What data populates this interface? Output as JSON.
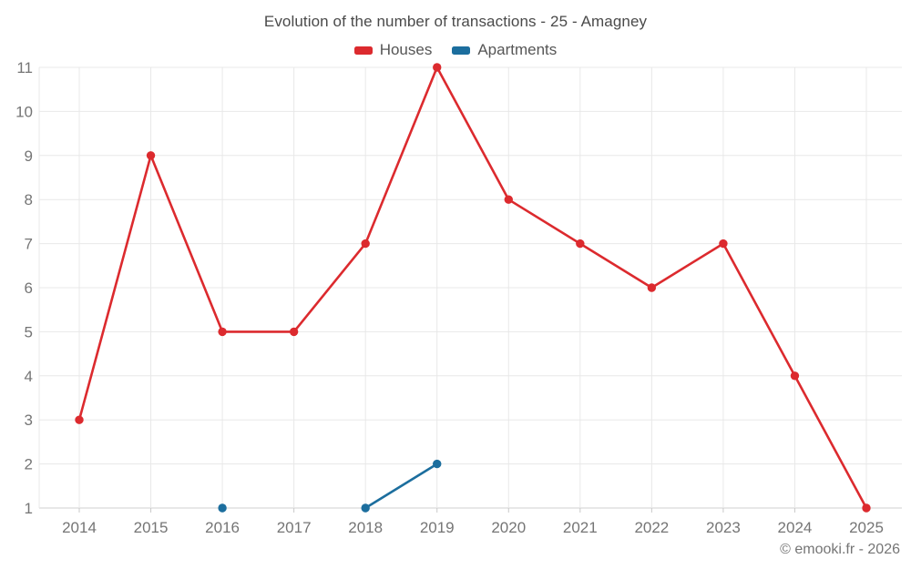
{
  "chart": {
    "title": "Evolution of the number of transactions - 25 - Amagney",
    "copyright": "© emooki.fr - 2026"
  },
  "chart_data": {
    "type": "line",
    "title": "Evolution of the number of transactions - 25 - Amagney",
    "categories": [
      "2014",
      "2015",
      "2016",
      "2017",
      "2018",
      "2019",
      "2020",
      "2021",
      "2022",
      "2023",
      "2024",
      "2025"
    ],
    "series": [
      {
        "name": "Houses",
        "color": "#dc2a2e",
        "values": [
          3,
          9,
          5,
          5,
          7,
          11,
          8,
          7,
          6,
          7,
          4,
          1
        ]
      },
      {
        "name": "Apartments",
        "color": "#1c6e9e",
        "values": [
          null,
          null,
          1,
          null,
          1,
          2,
          null,
          null,
          null,
          null,
          null,
          null
        ]
      }
    ],
    "xlabel": "",
    "ylabel": "",
    "ylim": [
      1,
      11
    ],
    "y_ticks": [
      1,
      2,
      3,
      4,
      5,
      6,
      7,
      8,
      9,
      10,
      11
    ],
    "grid": true,
    "legend_position": "top",
    "colors": {
      "grid_line": "#e8e8e8",
      "axis_line": "#cfcfcf",
      "tick_mark": "#c9c9c9",
      "axis_label": "#757575"
    }
  }
}
